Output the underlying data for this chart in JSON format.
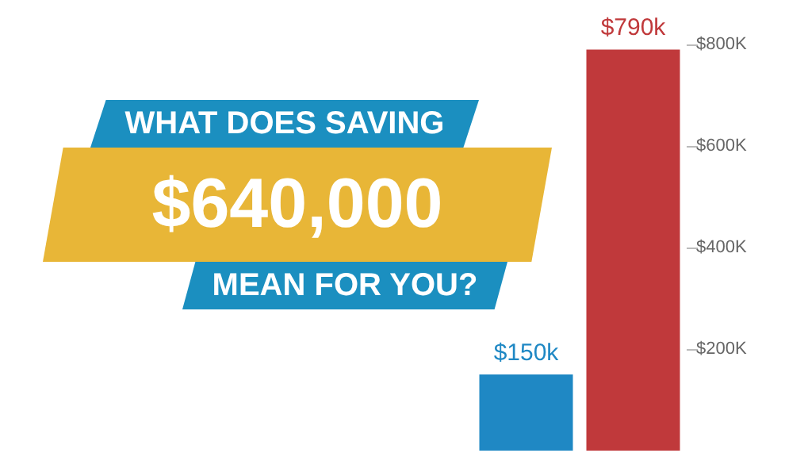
{
  "chart_data": {
    "type": "bar",
    "title": "WHAT DOES SAVING",
    "subtitle": "$640,000",
    "annotations": [
      "MEAN FOR YOU?"
    ],
    "categories": [
      null,
      null
    ],
    "values": [
      150,
      790
    ],
    "colors": [
      "#1f88c4",
      "#c0393b"
    ],
    "value_labels": [
      "$150k",
      "$790k"
    ],
    "ylim": [
      0,
      800
    ],
    "yticks": [
      {
        "value": 200,
        "label": "$200K"
      },
      {
        "value": 400,
        "label": "$400K"
      },
      {
        "value": 600,
        "label": "$600K"
      },
      {
        "value": 800,
        "label": "$800K"
      }
    ],
    "grid": false
  }
}
